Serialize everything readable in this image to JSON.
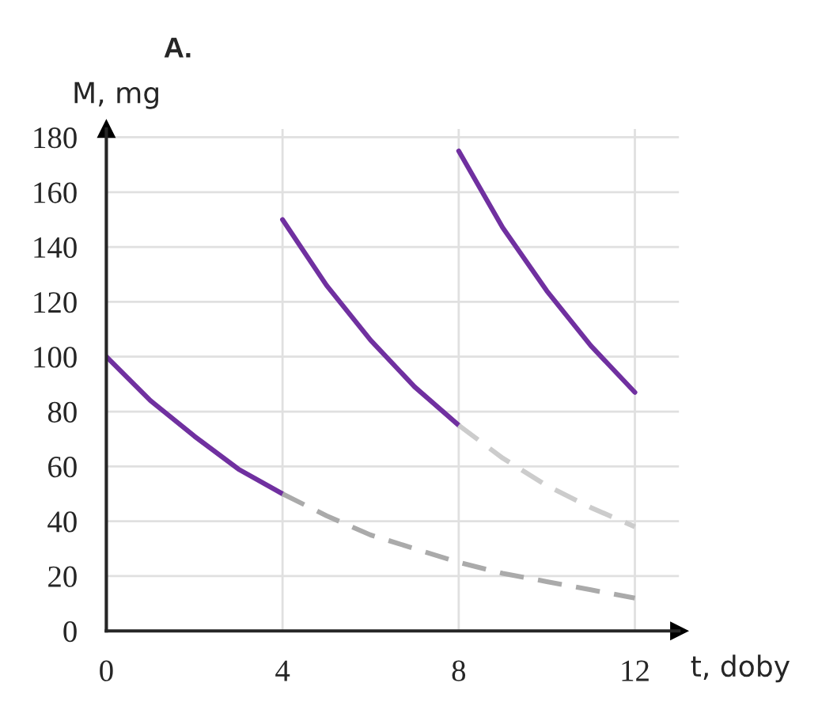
{
  "chart_data": {
    "type": "line",
    "title": "A.",
    "xlabel": "t, doby",
    "ylabel": "M, mg",
    "xlim": [
      0,
      13
    ],
    "ylim": [
      0,
      183
    ],
    "xticks": [
      0,
      4,
      8,
      12
    ],
    "yticks": [
      0,
      20,
      40,
      60,
      80,
      100,
      120,
      140,
      160,
      180
    ],
    "grid": true,
    "marker": "none",
    "series": [
      {
        "color": "#7030a0",
        "line_style": "solid",
        "x": [
          0,
          1,
          2,
          3,
          4
        ],
        "values": [
          100,
          84,
          71,
          59,
          50
        ]
      },
      {
        "color": "#7030a0",
        "line_style": "solid",
        "x": [
          4,
          5,
          6,
          7,
          8
        ],
        "values": [
          150,
          126,
          106,
          89,
          75
        ]
      },
      {
        "color": "#7030a0",
        "line_style": "solid",
        "x": [
          8,
          9,
          10,
          11,
          12
        ],
        "values": [
          175,
          147,
          124,
          104,
          87
        ]
      },
      {
        "color": "#aaaaaa",
        "line_style": "dashed",
        "x": [
          4,
          5,
          6,
          7,
          8,
          9,
          10,
          11,
          12
        ],
        "values": [
          50,
          42,
          35,
          30,
          25,
          21,
          18,
          15,
          12
        ]
      },
      {
        "color": "#cccccc",
        "line_style": "dashed",
        "x": [
          8,
          9,
          10,
          11,
          12
        ],
        "values": [
          75,
          63,
          53,
          45,
          38
        ]
      }
    ]
  }
}
